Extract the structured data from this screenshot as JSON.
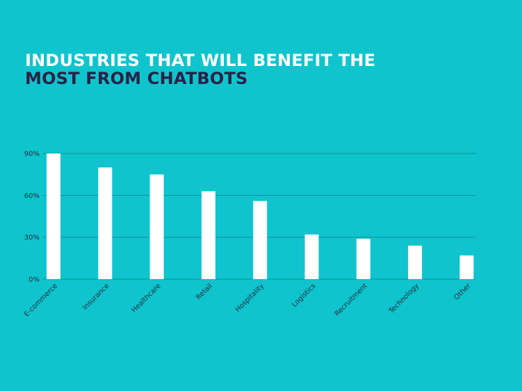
{
  "header": {
    "title_line1": "INDUSTRIES THAT WILL BENEFIT THE",
    "title_line2": "MOST FROM CHATBOTS"
  },
  "colors": {
    "background": "#0fc4cd",
    "bar": "#ffffff",
    "gridline": "#0b8f98",
    "title_primary": "#ffffff",
    "title_secondary": "#2b2146"
  },
  "chart_data": {
    "type": "bar",
    "title": "INDUSTRIES THAT WILL BENEFIT THE MOST FROM CHATBOTS",
    "xlabel": "",
    "ylabel": "",
    "categories": [
      "E-commerce",
      "Insurance",
      "Healthcare",
      "Retail",
      "Hospitality",
      "Logistics",
      "Recruitment",
      "Technology",
      "Other"
    ],
    "values": [
      90,
      80,
      75,
      63,
      56,
      32,
      29,
      24,
      17
    ],
    "ylim": [
      0,
      90
    ],
    "yticks": [
      0,
      30,
      60,
      90
    ],
    "ytick_labels": [
      "0%",
      "30%",
      "60%",
      "90%"
    ],
    "grid": true,
    "legend": "none"
  }
}
